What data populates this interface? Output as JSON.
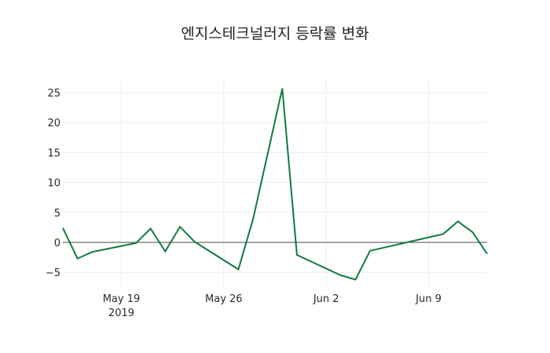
{
  "chart_data": {
    "type": "line",
    "title": "엔지스테크널러지 등락률 변화",
    "xlabel": "",
    "ylabel": "",
    "x": [
      "2019-05-15",
      "2019-05-16",
      "2019-05-17",
      "2019-05-20",
      "2019-05-21",
      "2019-05-22",
      "2019-05-23",
      "2019-05-24",
      "2019-05-27",
      "2019-05-28",
      "2019-05-30",
      "2019-05-31",
      "2019-06-03",
      "2019-06-04",
      "2019-06-05",
      "2019-06-10",
      "2019-06-11",
      "2019-06-12",
      "2019-06-13"
    ],
    "series": [
      {
        "name": "등락률",
        "color": "#117a3f",
        "values": [
          2.4,
          -2.7,
          -1.6,
          -0.1,
          2.3,
          -1.5,
          2.6,
          0.1,
          -4.5,
          3.9,
          25.7,
          -2.1,
          -5.5,
          -6.2,
          -1.4,
          1.4,
          3.5,
          1.7,
          -1.9
        ]
      }
    ],
    "x_ticks": [
      {
        "label": "May 19",
        "sub": "2019",
        "date": "2019-05-19"
      },
      {
        "label": "May 26",
        "sub": "",
        "date": "2019-05-26"
      },
      {
        "label": "Jun 2",
        "sub": "",
        "date": "2019-06-02"
      },
      {
        "label": "Jun 9",
        "sub": "",
        "date": "2019-06-09"
      }
    ],
    "y_ticks": [
      25,
      20,
      15,
      10,
      5,
      0,
      -5
    ],
    "y_tick_labels": [
      "25",
      "20",
      "15",
      "10",
      "5",
      "0",
      "−5"
    ],
    "ylim": [
      -8.5,
      27.5
    ],
    "xlim": [
      "2019-05-15",
      "2019-06-13"
    ],
    "grid": true,
    "zero_line": true,
    "legend": "none"
  }
}
